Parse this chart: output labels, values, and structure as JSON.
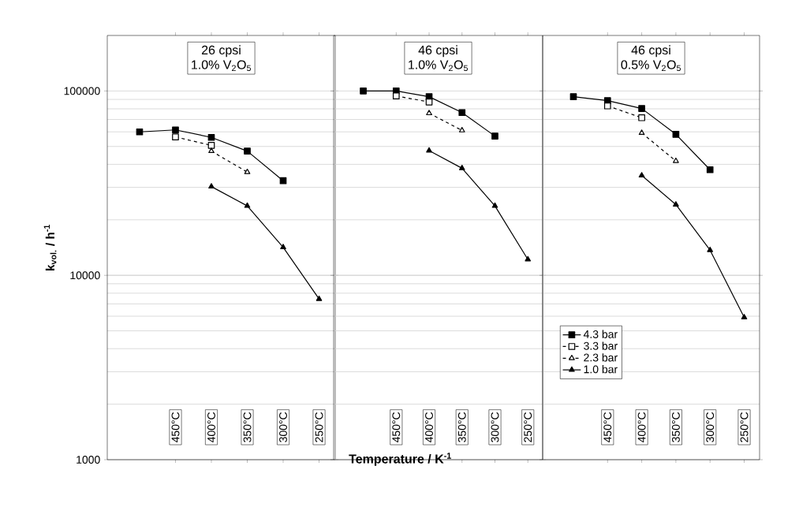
{
  "chart_data": [
    {
      "type": "line",
      "title": "26 cpsi",
      "subtitle": "1.0% V$_{2}$O$_{5}$",
      "ylabel": "k$_{vol.}$ / h$^{-1}$",
      "log": "y",
      "grid": "y",
      "categories": [
        null,
        "450°C",
        "400°C",
        "350°C",
        "300°C",
        "250°C"
      ],
      "ylim": [
        1000,
        200000
      ],
      "yticks": [
        1000,
        10000,
        100000
      ],
      "series": [
        {
          "color": "#000000",
          "marker": "square",
          "line_style": "solid",
          "values": [
            60000,
            61500,
            56000,
            47200,
            32600,
            null
          ]
        },
        {
          "color": "#000000",
          "marker": "square",
          "line_style": "dashed",
          "values": [
            null,
            56300,
            50700,
            null,
            null,
            null
          ]
        },
        {
          "color": "#000000",
          "marker": "triangle",
          "line_style": "dashed",
          "values": [
            null,
            null,
            47200,
            36300,
            null,
            null
          ]
        },
        {
          "color": "#000000",
          "marker": "triangle",
          "line_style": "solid",
          "values": [
            null,
            null,
            30300,
            23800,
            14200,
            7440
          ]
        }
      ]
    },
    {
      "type": "line",
      "title": "46 cpsi",
      "subtitle": "1.0% V$_{2}$O$_{5}$",
      "xlabel": "Temperature / K$^{-1}$",
      "log": "y",
      "grid": "y",
      "tick_labels": "x",
      "categories": [
        null,
        "450°C",
        "400°C",
        "350°C",
        "300°C",
        "250°C"
      ],
      "ylim": [
        1000,
        200000
      ],
      "yticks": [
        1000,
        10000,
        100000
      ],
      "series": [
        {
          "color": "#000000",
          "marker": "square",
          "line_style": "solid",
          "values": [
            100000,
            100000,
            93100,
            76400,
            56900,
            null
          ]
        },
        {
          "color": "#000000",
          "marker": "square",
          "line_style": "dashed",
          "values": [
            null,
            94000,
            87100,
            null,
            null,
            null
          ]
        },
        {
          "color": "#000000",
          "marker": "triangle",
          "line_style": "dashed",
          "values": [
            null,
            null,
            75700,
            61100,
            null,
            null
          ]
        },
        {
          "color": "#000000",
          "marker": "triangle",
          "line_style": "solid",
          "values": [
            null,
            null,
            47500,
            38100,
            23800,
            12200
          ]
        }
      ]
    },
    {
      "type": "line",
      "title": "46 cpsi",
      "subtitle": "0.5% V$_{2}$O$_{5}$",
      "log": "y",
      "grid": "y",
      "tick_labels": "x",
      "legend": "bottom left",
      "categories": [
        null,
        "450°C",
        "400°C",
        "350°C",
        "300°C",
        "250°C"
      ],
      "ylim": [
        1000,
        200000
      ],
      "yticks": [
        1000,
        10000,
        100000
      ],
      "series": [
        {
          "name": "4.3 bar",
          "color": "#000000",
          "marker": "square",
          "line_style": "solid",
          "values": [
            93100,
            88600,
            80300,
            58200,
            37400,
            null
          ]
        },
        {
          "name": "3.3 bar",
          "color": "#000000",
          "marker": "square",
          "line_style": "dashed",
          "values": [
            null,
            83000,
            71600,
            null,
            null,
            null
          ]
        },
        {
          "name": "2.3 bar",
          "color": "#000000",
          "marker": "triangle",
          "line_style": "dashed",
          "values": [
            null,
            null,
            59200,
            41700,
            null,
            null
          ]
        },
        {
          "name": "1.0 bar",
          "color": "#000000",
          "marker": "triangle",
          "line_style": "solid",
          "values": [
            null,
            null,
            34800,
            24200,
            13700,
            5920
          ]
        }
      ]
    }
  ]
}
